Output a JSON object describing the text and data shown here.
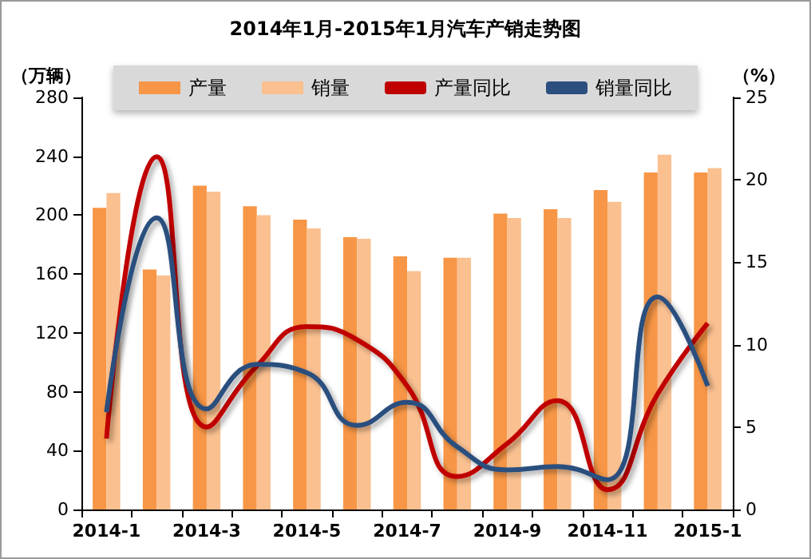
{
  "chart_data": {
    "type": "bar",
    "title": "2014年1月-2015年1月汽车产销走势图",
    "ylabel": "（万辆）",
    "y2label": "（%）",
    "categories": [
      "2014-1",
      null,
      "2014-3",
      null,
      "2014-5",
      null,
      "2014-7",
      null,
      "2014-9",
      null,
      "2014-11",
      null,
      "2015-1"
    ],
    "series": [
      {
        "name": "产量",
        "color": "#f79646",
        "values": [
          205,
          163,
          220,
          206,
          197,
          185,
          172,
          171,
          201,
          204,
          217,
          229,
          229
        ]
      },
      {
        "name": "销量",
        "color": "#fac090",
        "values": [
          215,
          159,
          216,
          200,
          191,
          184,
          162,
          171,
          198,
          198,
          209,
          241,
          232
        ]
      },
      {
        "name": "产量同比",
        "type": "line",
        "axis": "y2",
        "color": "#c00000",
        "values": [
          4.3,
          21.4,
          5.0,
          8.7,
          11.1,
          10.3,
          7.5,
          2.0,
          4.0,
          6.6,
          1.2,
          7.0,
          11.3
        ]
      },
      {
        "name": "销量同比",
        "type": "line",
        "axis": "y2",
        "color": "#2b4f7e",
        "values": [
          5.9,
          17.7,
          6.1,
          8.8,
          8.3,
          5.1,
          6.5,
          3.8,
          2.4,
          2.6,
          1.8,
          12.9,
          7.5
        ]
      }
    ],
    "ylim": [
      0,
      280
    ],
    "yticks": [
      0,
      40,
      80,
      120,
      160,
      200,
      240,
      280
    ],
    "y2lim": [
      0,
      25
    ],
    "y2ticks": [
      0,
      5,
      10,
      15,
      20,
      25
    ],
    "grid": false,
    "legend": "top",
    "marker": "none",
    "line_style": "solid"
  }
}
